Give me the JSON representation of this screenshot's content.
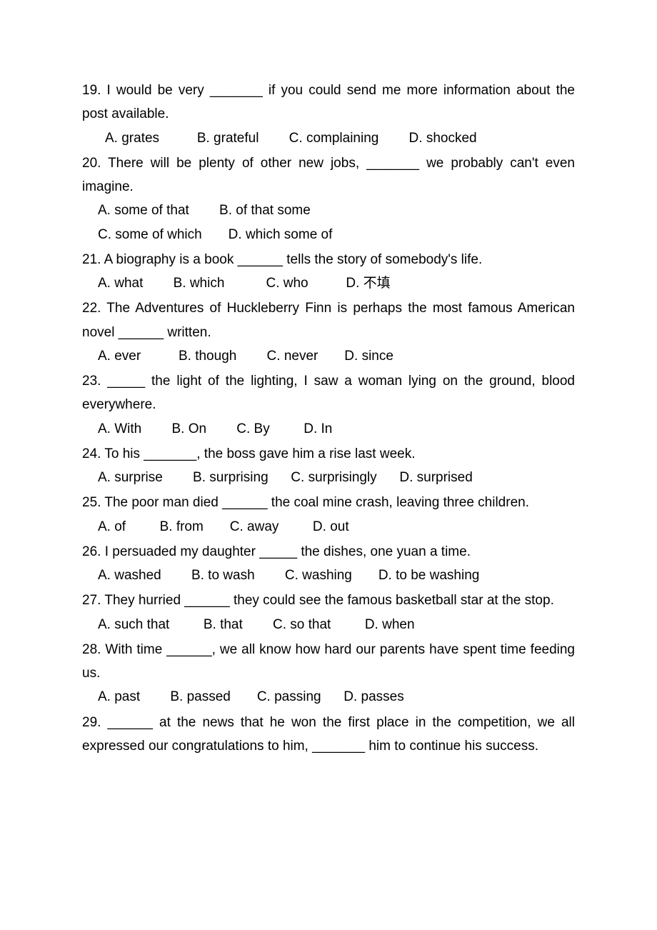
{
  "questions": [
    {
      "number": "19",
      "text": "19. I would be very _______ if you could send me more information about the post available.",
      "options": "A. grates          B. grateful        C. complaining        D. shocked",
      "optionsIndent": true
    },
    {
      "number": "20",
      "text": "20. There will be plenty of other new jobs, _______ we probably can't even imagine.",
      "optionsLine1": "A. some of that        B. of that some",
      "optionsLine2": "C. some of which       D. which some of"
    },
    {
      "number": "21",
      "text": "21. A biography is a book ______ tells the story of somebody's life.",
      "options": "A. what        B. which           C. who          D. 不填"
    },
    {
      "number": "22",
      "text": "22. The Adventures of Huckleberry Finn is perhaps the most famous American novel ______ written.",
      "options": "A. ever          B. though        C. never       D. since"
    },
    {
      "number": "23",
      "text": "23. _____ the light of the lighting, I saw a woman lying on the ground, blood everywhere.",
      "options": "A. With        B. On        C. By         D. In"
    },
    {
      "number": "24",
      "text": "24. To his _______, the boss gave him a rise last week.",
      "options": "A. surprise        B. surprising      C. surprisingly      D. surprised"
    },
    {
      "number": "25",
      "text": "25. The poor man died ______ the coal mine crash, leaving three children.",
      "options": "A. of         B. from       C. away         D. out"
    },
    {
      "number": "26",
      "text": "26. I persuaded my daughter _____ the dishes, one yuan a time.",
      "options": "A. washed        B. to wash        C. washing       D. to be washing"
    },
    {
      "number": "27",
      "text": "27. They hurried ______ they could see the famous basketball star at the stop.",
      "options": "A. such that         B. that        C. so that         D. when"
    },
    {
      "number": "28",
      "text": "28. With time ______, we all know how hard our parents have spent time feeding us.",
      "options": "A. past        B. passed       C. passing      D. passes"
    },
    {
      "number": "29",
      "text": "29. ______ at the news that he won the first place in the competition, we all expressed our congratulations to him, _______ him to continue his success."
    }
  ]
}
